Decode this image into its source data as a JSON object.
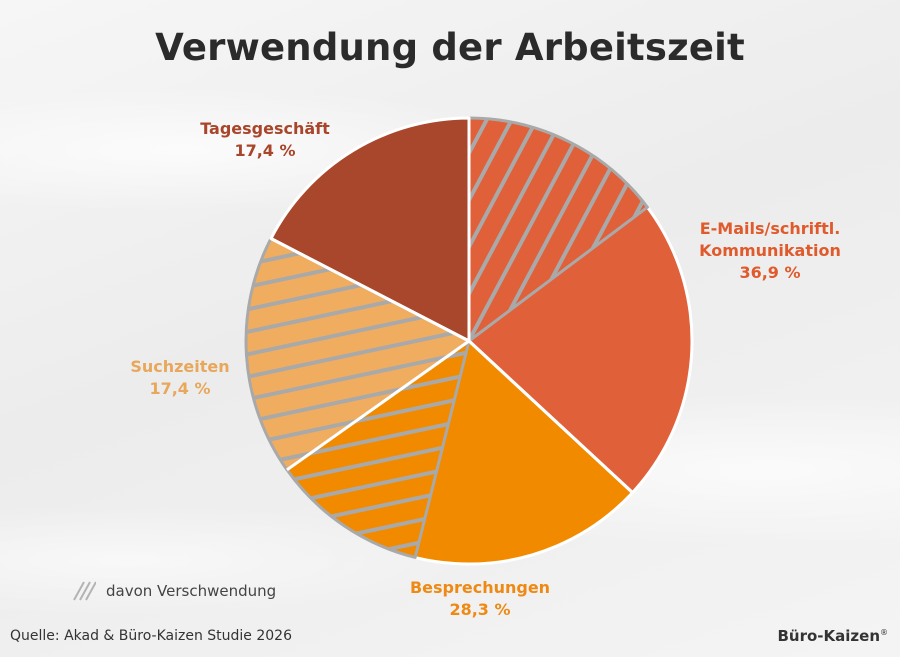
{
  "title": "Verwendung der Arbeitszeit",
  "legend": {
    "label": "davon Verschwendung"
  },
  "source": "Quelle: Akad & Büro-Kaizen Studie 2026",
  "brand": {
    "name": "Büro-Kaizen",
    "mark": "®"
  },
  "colors": {
    "email": "#e0603a",
    "besprechungen": "#f28a00",
    "suchzeiten": "#f0ad5f",
    "tagesgeschaeft": "#a9472d",
    "hatch": "#a9a9a9",
    "border": "#ffffff"
  },
  "chart_data": {
    "type": "pie",
    "title": "Verwendung der Arbeitszeit",
    "start_angle_deg": 0,
    "direction": "clockwise",
    "slices": [
      {
        "label_line1": "E-Mails/schriftl.",
        "label_line2": "Kommunikation",
        "value": 36.9,
        "value_label": "36,9 %",
        "color": "#e0603a",
        "waste_share": 0.4,
        "hatch": "diagonal"
      },
      {
        "label_line1": "Besprechungen",
        "value": 28.3,
        "value_label": "28,3 %",
        "color": "#f28a00",
        "waste_share": 0.4,
        "hatch": "horizontal"
      },
      {
        "label_line1": "Suchzeiten",
        "value": 17.4,
        "value_label": "17,4 %",
        "color": "#f0ad5f",
        "waste_share": 1.0,
        "hatch": "horizontal"
      },
      {
        "label_line1": "Tagesgeschäft",
        "value": 17.4,
        "value_label": "17,4 %",
        "color": "#a9472d",
        "waste_share": 0.0,
        "hatch": "none"
      }
    ],
    "legend": [
      {
        "label": "davon Verschwendung",
        "pattern": "hatch"
      }
    ]
  }
}
